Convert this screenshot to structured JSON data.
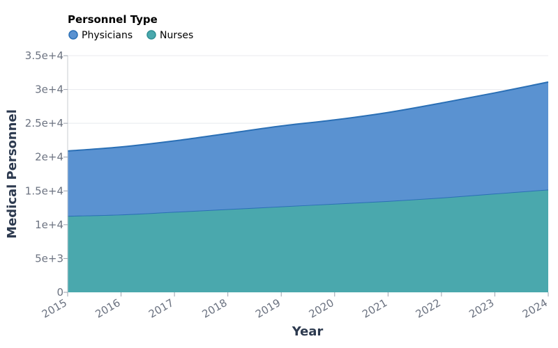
{
  "chart_data": {
    "type": "area",
    "stacked": true,
    "legend": {
      "title": "Personnel Type",
      "placement": "top-left",
      "entries": [
        "Physicians",
        "Nurses"
      ]
    },
    "xlabel": "Year",
    "ylabel": "Medical Personnel",
    "x": [
      "2015",
      "2016",
      "2017",
      "2018",
      "2019",
      "2020",
      "2021",
      "2022",
      "2023",
      "2024"
    ],
    "ylim": [
      0,
      35000
    ],
    "yticks": [
      0,
      5000,
      10000,
      15000,
      20000,
      25000,
      30000,
      35000
    ],
    "ytick_labels": [
      "0",
      "5e+3",
      "1e+4",
      "1.5e+4",
      "2e+4",
      "2.5e+4",
      "3e+4",
      "3.5e+4"
    ],
    "grid": true,
    "series": [
      {
        "name": "Nurses",
        "color": "#4aa8ad",
        "values": [
          11300,
          11500,
          11900,
          12300,
          12700,
          13100,
          13500,
          14000,
          14600,
          15200
        ]
      },
      {
        "name": "Physicians",
        "color": "#5a92d1",
        "values": [
          9600,
          10000,
          10500,
          11200,
          11900,
          12400,
          13100,
          14000,
          14900,
          15900
        ]
      }
    ],
    "line_color": "#2a6fb5"
  }
}
